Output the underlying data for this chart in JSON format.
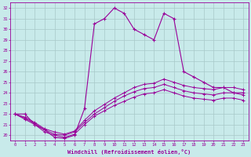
{
  "xlabel": "Windchill (Refroidissement éolien,°C)",
  "background_color": "#c8eaea",
  "grid_color": "#a8c8c8",
  "line_color": "#990099",
  "x_hours": [
    0,
    1,
    2,
    3,
    4,
    5,
    6,
    7,
    8,
    9,
    10,
    11,
    12,
    13,
    14,
    15,
    16,
    17,
    18,
    19,
    20,
    21,
    22,
    23
  ],
  "temp_line": [
    22,
    22,
    21,
    20.5,
    19.8,
    19.7,
    20,
    22.5,
    30.5,
    31,
    32,
    31.5,
    30,
    29.5,
    29,
    31.5,
    31,
    26,
    25.5,
    25,
    24.5,
    24.5,
    24,
    24
  ],
  "windchill_line1": [
    22,
    21.5,
    21.0,
    20.3,
    20.0,
    19.8,
    20.1,
    21.0,
    21.8,
    22.3,
    22.8,
    23.2,
    23.6,
    23.9,
    24.0,
    24.3,
    24.0,
    23.7,
    23.5,
    23.4,
    23.3,
    23.5,
    23.5,
    23.3
  ],
  "windchill_line2": [
    22,
    21.6,
    21.1,
    20.5,
    20.1,
    20.0,
    20.3,
    21.2,
    22.0,
    22.6,
    23.2,
    23.7,
    24.1,
    24.4,
    24.5,
    24.8,
    24.5,
    24.2,
    24.0,
    23.9,
    23.8,
    24.0,
    24.0,
    23.8
  ],
  "windchill_line3": [
    22,
    21.7,
    21.2,
    20.6,
    20.3,
    20.1,
    20.4,
    21.4,
    22.3,
    22.9,
    23.5,
    24.0,
    24.5,
    24.8,
    24.9,
    25.3,
    25.0,
    24.7,
    24.5,
    24.4,
    24.3,
    24.5,
    24.5,
    24.3
  ],
  "ylim": [
    19.5,
    32.5
  ],
  "xlim": [
    -0.5,
    23.5
  ],
  "yticks": [
    20,
    21,
    22,
    23,
    24,
    25,
    26,
    27,
    28,
    29,
    30,
    31,
    32
  ],
  "xticks": [
    0,
    1,
    2,
    3,
    4,
    5,
    6,
    7,
    8,
    9,
    10,
    11,
    12,
    13,
    14,
    15,
    16,
    17,
    18,
    19,
    20,
    21,
    22,
    23
  ]
}
